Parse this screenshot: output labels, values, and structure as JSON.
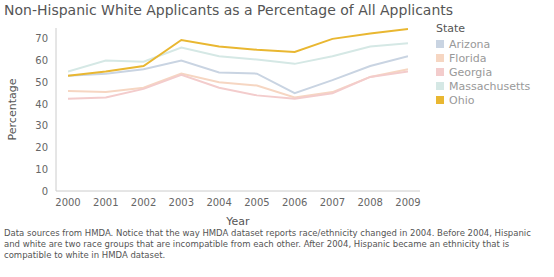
{
  "chart_data": {
    "type": "line",
    "title": "Non-Hispanic White Applicants as a Percentage of All Applicants",
    "x_label": "Year",
    "y_label": "Percentage",
    "legend_title": "State",
    "legend": "right",
    "grid": false,
    "caption": "Data sources from HMDA. Notice that the way HMDA dataset reports race/ethnicity changed in 2004. Before 2004, Hispanic and white are two race groups that are incompatible from each other. After 2004, Hispanic became an ethnicity that is compatible to white in HMDA dataset.",
    "x": [
      2000,
      2001,
      2002,
      2003,
      2004,
      2005,
      2006,
      2007,
      2008,
      2009
    ],
    "xlim": [
      2000,
      2009
    ],
    "xticks": [
      2000,
      2001,
      2002,
      2003,
      2004,
      2005,
      2006,
      2007,
      2008,
      2009
    ],
    "ylim": [
      0,
      75
    ],
    "yticks": [
      0,
      10,
      20,
      30,
      40,
      50,
      60,
      70
    ],
    "series": [
      {
        "name": "Arizona",
        "color": "#c9d4e2",
        "values": [
          53,
          54,
          56,
          60,
          54.5,
          54,
          45,
          51,
          57.5,
          62
        ]
      },
      {
        "name": "Florida",
        "color": "#f6d6c2",
        "values": [
          46,
          45.5,
          47.5,
          54,
          50,
          48.5,
          43,
          45.5,
          52.5,
          56
        ]
      },
      {
        "name": "Georgia",
        "color": "#f3cccc",
        "values": [
          42.5,
          43,
          47,
          53.5,
          47.5,
          44,
          42.5,
          45,
          52.5,
          55
        ]
      },
      {
        "name": "Massachusetts",
        "color": "#d5e8e5",
        "values": [
          55,
          60,
          59.5,
          66,
          62,
          60.5,
          58.5,
          62,
          66.5,
          68
        ]
      },
      {
        "name": "Ohio",
        "color": "#e9b731",
        "values": [
          53,
          55,
          57.5,
          69.5,
          66.5,
          65,
          64,
          70,
          72.5,
          74.5
        ]
      }
    ]
  }
}
